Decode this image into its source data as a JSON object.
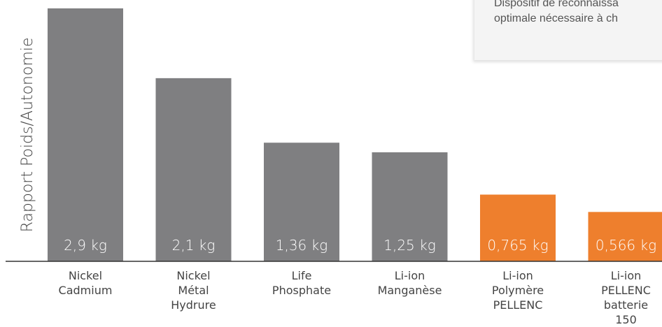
{
  "chart_data": {
    "type": "bar",
    "title": "",
    "xlabel": "",
    "ylabel": "Rapport Poids/Autonomie",
    "ylim": [
      0,
      2.9
    ],
    "grid": false,
    "legend": "none",
    "categories": [
      [
        "Nickel",
        "Cadmium"
      ],
      [
        "Nickel",
        "Métal",
        "Hydrure"
      ],
      [
        "Life",
        "Phosphate"
      ],
      [
        "Li-ion",
        "Manganèse"
      ],
      [
        "Li-ion",
        "Polymère",
        "PELLENC"
      ],
      [
        "Li-ion",
        "PELLENC",
        "batterie",
        "150"
      ]
    ],
    "values": [
      2.9,
      2.1,
      1.36,
      1.25,
      0.765,
      0.566
    ],
    "value_labels": [
      "2,9 kg",
      "2,1 kg",
      "1,36 kg",
      "1,25 kg",
      "0,765 kg",
      "0,566 kg"
    ],
    "bar_colors": [
      "#7f7f81",
      "#7f7f81",
      "#7f7f81",
      "#7f7f81",
      "#ee7f2d",
      "#ee7f2d"
    ],
    "colors": {
      "baseline": "#333333",
      "label": "#444444",
      "value_label": "#ffffff"
    }
  },
  "note": {
    "line1": "Dispositif de reconnaissa",
    "line2": "optimale nécessaire à ch"
  }
}
